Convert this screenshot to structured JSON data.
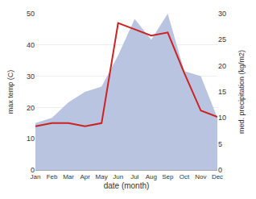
{
  "chart_data": {
    "type": "line",
    "categories": [
      "Jan",
      "Feb",
      "Mar",
      "Apr",
      "May",
      "Jun",
      "Jul",
      "Aug",
      "Sep",
      "Oct",
      "Nov",
      "Dec"
    ],
    "xlabel": "date (month)",
    "ylabel": "max temp (C)",
    "y2label": "med. precipitation (kg/m2)",
    "ylim": [
      0,
      50
    ],
    "yticks": [
      0,
      10,
      20,
      30,
      40,
      50
    ],
    "y2lim": [
      0,
      30
    ],
    "y2ticks": [
      0,
      5,
      10,
      15,
      20,
      25,
      30
    ],
    "grid": true,
    "series": [
      {
        "type": "area",
        "axis": "y2",
        "color": "#b8c4e0",
        "values": [
          9,
          10,
          13,
          15,
          16,
          22,
          29,
          25,
          30,
          19,
          18,
          10
        ]
      },
      {
        "type": "line",
        "color": "#cc2222",
        "values": [
          14,
          15,
          15,
          14,
          15,
          47,
          45,
          43,
          44,
          31,
          19,
          17
        ]
      }
    ]
  }
}
